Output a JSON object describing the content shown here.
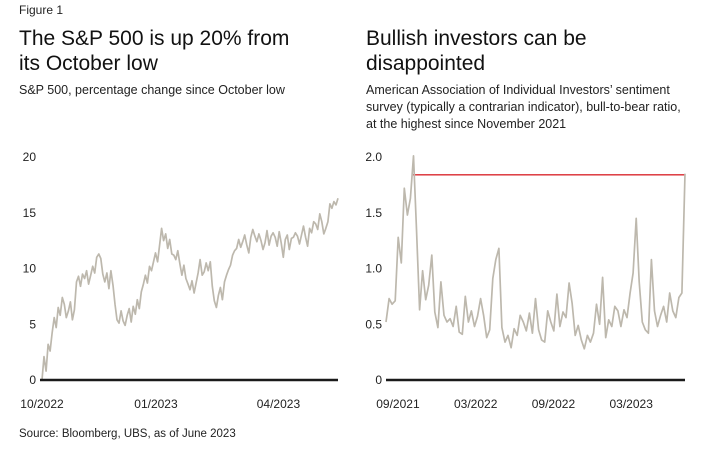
{
  "figure_label": "Figure 1",
  "source": "Source: Bloomberg, UBS, as of June 2023",
  "colors": {
    "line": "#bdb8ad",
    "axis": "#1a1a1a",
    "reference": "#d9272e"
  },
  "chart_data": [
    {
      "type": "line",
      "title_lines": [
        "The S&P 500 is up 20% from",
        "its October low"
      ],
      "subtitle_lines": [
        "S&P 500, percentage change since October low"
      ],
      "xlabel": "",
      "ylabel": "",
      "ylim": [
        0,
        20
      ],
      "yticks": [
        {
          "value": 0,
          "label": "0"
        },
        {
          "value": 5,
          "label": "5"
        },
        {
          "value": 10,
          "label": "10"
        },
        {
          "value": 15,
          "label": "15"
        },
        {
          "value": 20,
          "label": "20"
        }
      ],
      "xlim": [
        0,
        174
      ],
      "xticks": [
        {
          "x": 0,
          "label": "10/2022"
        },
        {
          "x": 67,
          "label": "01/2023"
        },
        {
          "x": 139,
          "label": "04/2023"
        }
      ],
      "series": [
        {
          "name": "S&P 500 % change since October low",
          "values": [
            0,
            2.1,
            0.8,
            3.2,
            2.6,
            4.2,
            5.6,
            4.7,
            6.5,
            5.8,
            7.4,
            6.8,
            5.6,
            6.2,
            7.0,
            5.4,
            6.3,
            8.8,
            9.3,
            8.4,
            9.5,
            9.1,
            9.8,
            8.6,
            9.4,
            10.2,
            9.6,
            11.0,
            11.3,
            10.9,
            9.5,
            8.8,
            9.6,
            8.2,
            9.8,
            8.5,
            6.8,
            5.4,
            5.1,
            6.2,
            5.3,
            4.9,
            5.8,
            6.4,
            5.2,
            6.6,
            5.9,
            7.2,
            6.4,
            7.9,
            8.6,
            9.4,
            8.7,
            10.2,
            9.8,
            10.6,
            11.4,
            10.6,
            12.1,
            13.6,
            12.5,
            13.1,
            11.8,
            12.6,
            11.3,
            11.2,
            10.8,
            11.6,
            10.4,
            9.4,
            10.3,
            9.1,
            8.6,
            8.1,
            8.9,
            7.8,
            8.7,
            9.6,
            10.8,
            9.4,
            9.7,
            10.5,
            9.8,
            10.6,
            8.4,
            7.1,
            6.5,
            7.6,
            8.3,
            7.2,
            8.8,
            9.4,
            9.9,
            10.3,
            11.2,
            11.6,
            11.8,
            12.6,
            11.9,
            12.4,
            13.0,
            12.1,
            11.4,
            12.8,
            13.5,
            12.9,
            12.4,
            13.1,
            12.5,
            11.7,
            12.3,
            13.4,
            12.1,
            12.9,
            13.2,
            12.8,
            12.0,
            13.3,
            12.3,
            11.0,
            12.6,
            13.0,
            11.7,
            12.7,
            12.8,
            13.2,
            12.9,
            12.2,
            13.0,
            13.8,
            12.8,
            12.0,
            13.6,
            13.2,
            14.2,
            14.0,
            13.5,
            14.9,
            14.2,
            13.1,
            13.6,
            14.2,
            15.8,
            15.4,
            16.0,
            15.7,
            16.3
          ]
        }
      ]
    },
    {
      "type": "line",
      "title_lines": [
        "Bullish investors can be",
        "disappointed"
      ],
      "subtitle_lines": [
        "American Association of Individual Investors’ sentiment",
        "survey (typically a contrarian indicator), bull-to-bear ratio,",
        "at the highest since November 2021"
      ],
      "xlabel": "",
      "ylabel": "",
      "ylim": [
        0,
        2.0
      ],
      "yticks": [
        {
          "value": 0,
          "label": "0"
        },
        {
          "value": 0.5,
          "label": "0.5"
        },
        {
          "value": 1.0,
          "label": "1.0"
        },
        {
          "value": 1.5,
          "label": "1.5"
        },
        {
          "value": 2.0,
          "label": "2.0"
        }
      ],
      "xlim": [
        0,
        100
      ],
      "xticks": [
        {
          "x": 4,
          "label": "09/2021"
        },
        {
          "x": 30,
          "label": "03/2022"
        },
        {
          "x": 56,
          "label": "09/2022"
        },
        {
          "x": 82,
          "label": "03/2023"
        }
      ],
      "reference_line": {
        "value": 1.84,
        "x_start": 9
      },
      "series": [
        {
          "name": "AAII bull-to-bear ratio",
          "values": [
            0.52,
            0.73,
            0.68,
            0.71,
            1.28,
            1.05,
            1.72,
            1.48,
            1.63,
            2.01,
            1.35,
            0.63,
            0.98,
            0.72,
            0.85,
            1.12,
            0.61,
            0.47,
            0.88,
            0.58,
            0.52,
            0.55,
            0.48,
            0.66,
            0.43,
            0.41,
            0.75,
            0.52,
            0.62,
            0.48,
            0.57,
            0.73,
            0.58,
            0.38,
            0.45,
            0.91,
            1.08,
            1.18,
            0.47,
            0.34,
            0.4,
            0.29,
            0.46,
            0.4,
            0.58,
            0.52,
            0.44,
            0.6,
            0.42,
            0.73,
            0.45,
            0.36,
            0.34,
            0.62,
            0.52,
            0.44,
            0.77,
            0.48,
            0.61,
            0.56,
            0.87,
            0.69,
            0.4,
            0.49,
            0.36,
            0.28,
            0.4,
            0.34,
            0.42,
            0.68,
            0.5,
            0.92,
            0.38,
            0.54,
            0.48,
            0.66,
            0.62,
            0.48,
            0.63,
            0.56,
            0.78,
            0.96,
            1.45,
            0.88,
            0.52,
            0.45,
            0.42,
            1.08,
            0.62,
            0.48,
            0.58,
            0.66,
            0.52,
            0.78,
            0.62,
            0.56,
            0.74,
            0.78,
            1.85
          ]
        }
      ]
    }
  ]
}
